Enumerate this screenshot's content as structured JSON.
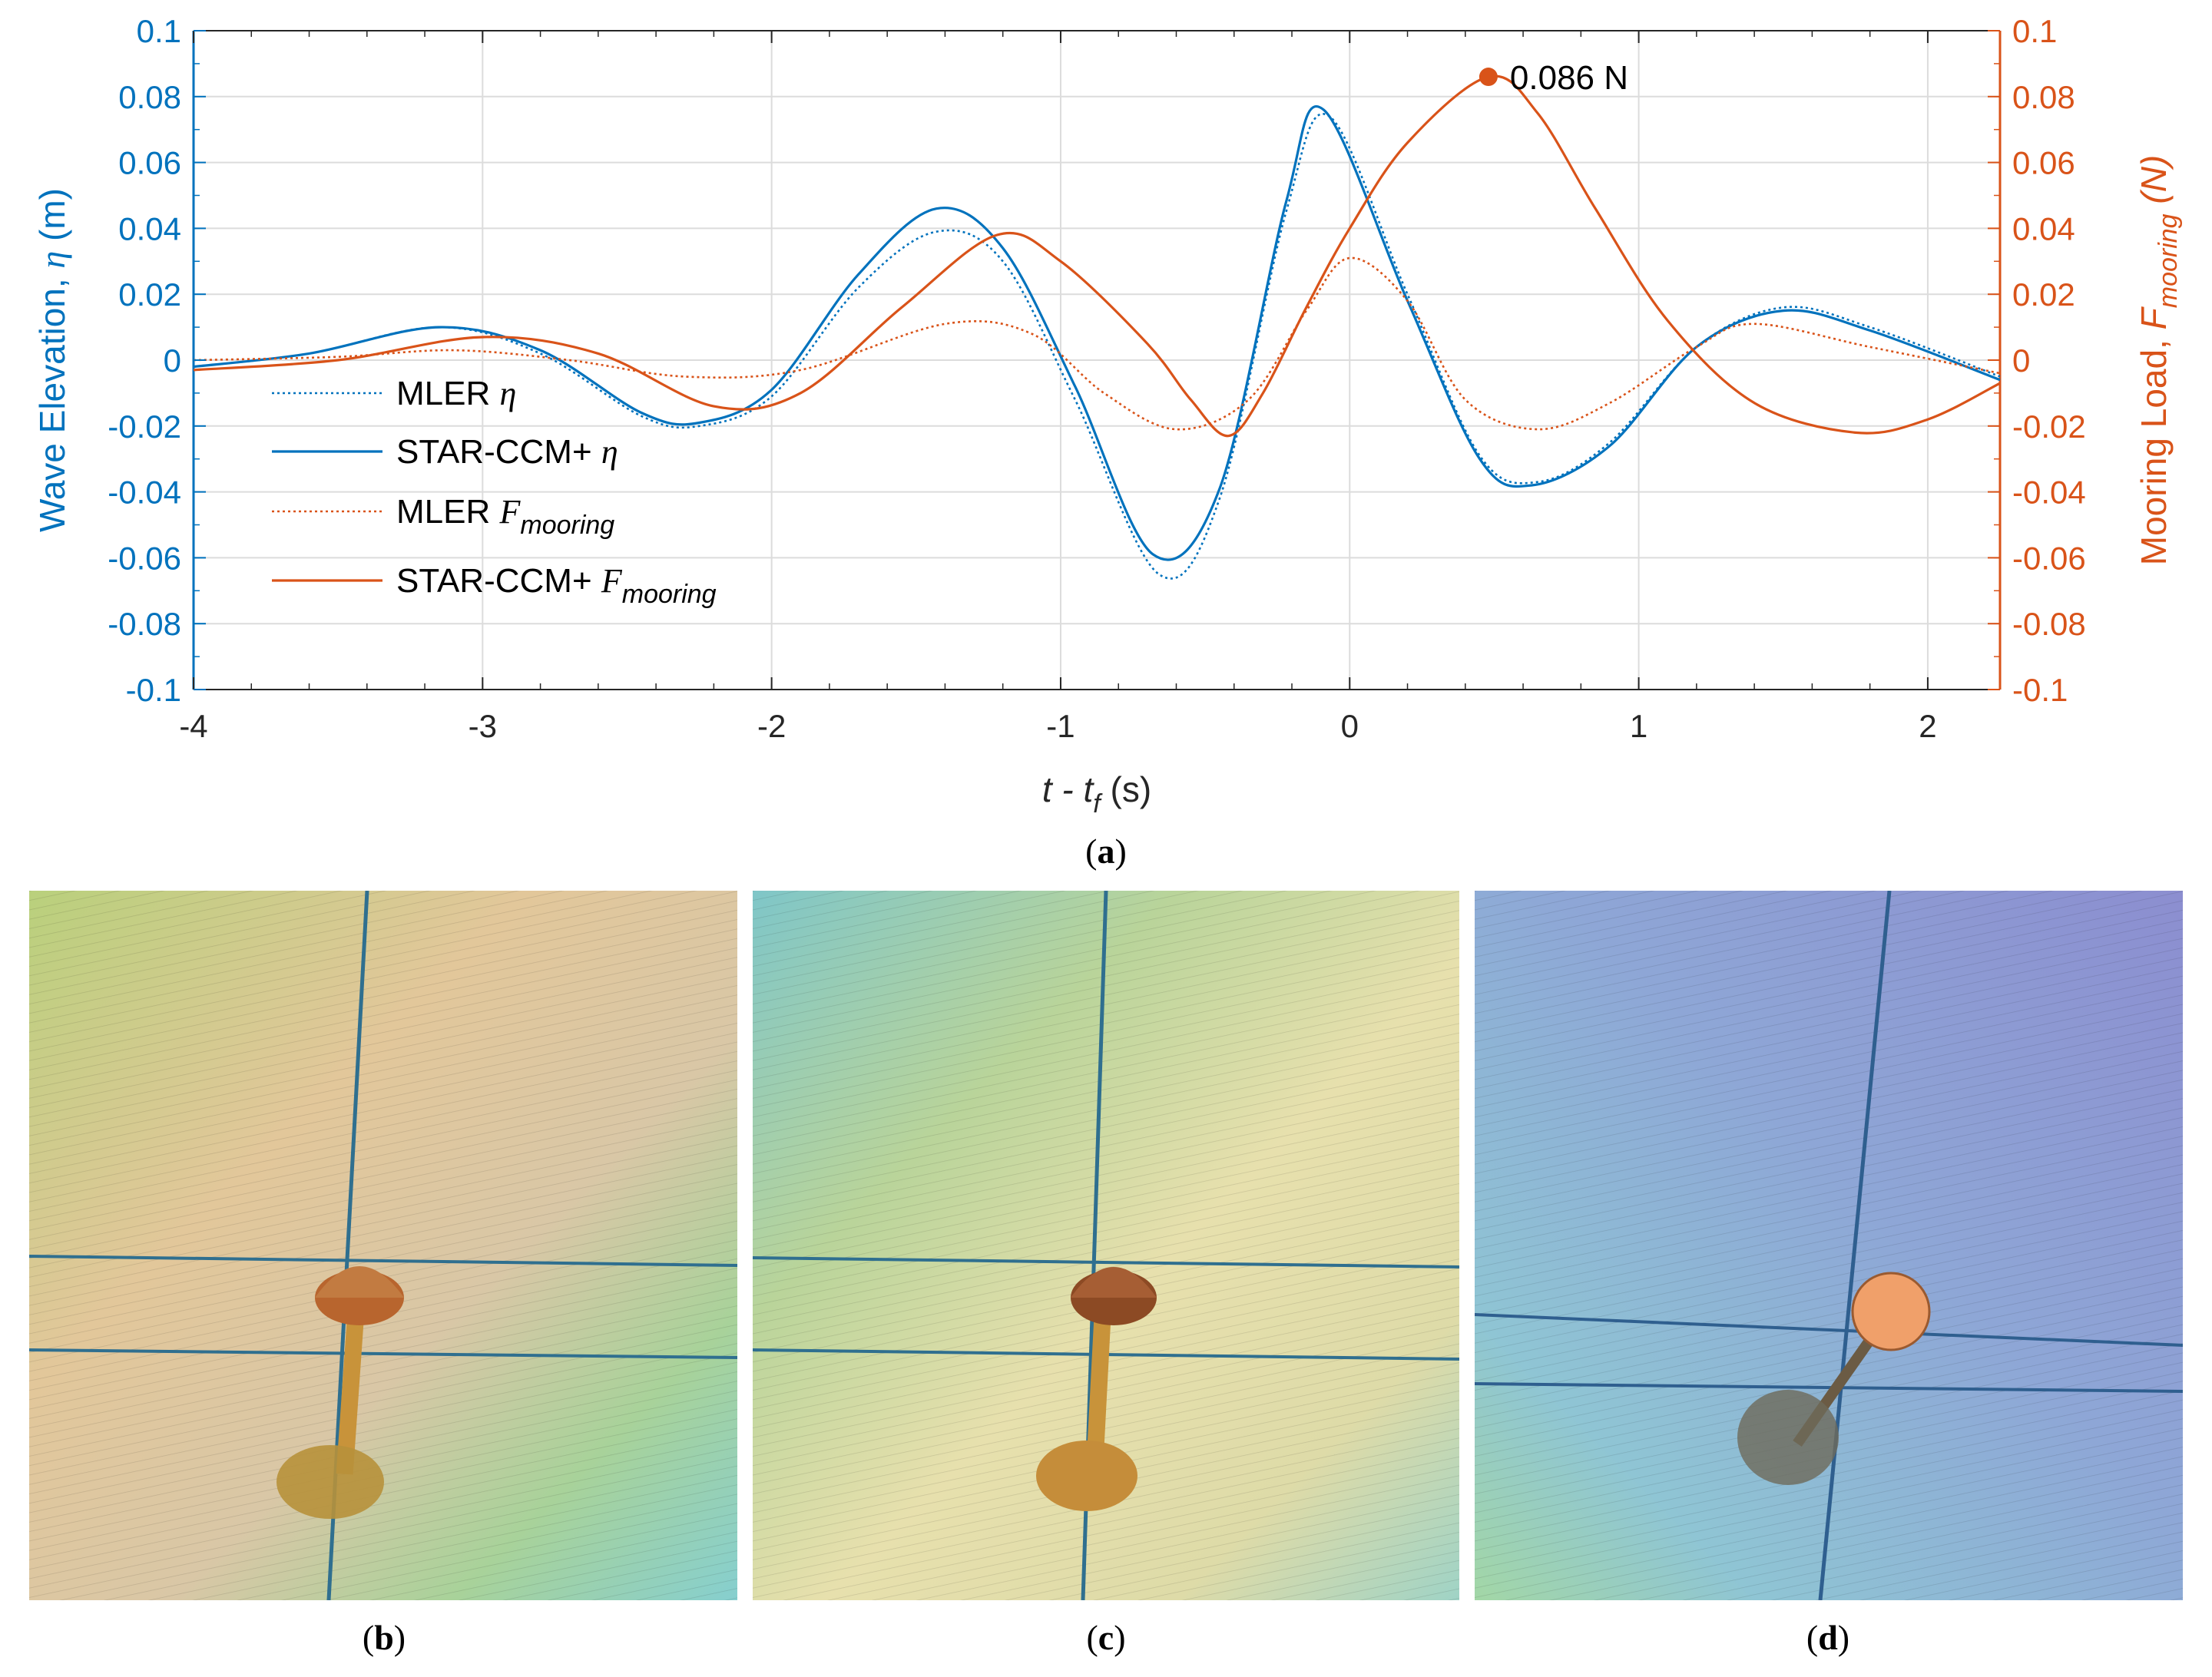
{
  "chart_data": {
    "type": "line",
    "xlabel_main": "t",
    "xlabel_mid": " - t",
    "xlabel_sub": "f",
    "xlabel_unit": " (s)",
    "ylabel_left_prefix": "Wave Elevation, ",
    "ylabel_left_symbol": "η",
    "ylabel_left_unit": " (m)",
    "ylabel_right_prefix": "Mooring Load, ",
    "ylabel_right_symbol": "F",
    "ylabel_right_sub": "mooring",
    "ylabel_right_unit": " (N)",
    "xlim": [
      -4,
      2.25
    ],
    "ylim_left": [
      -0.1,
      0.1
    ],
    "ylim_right": [
      -0.1,
      0.1
    ],
    "x_ticks": [
      "-4",
      "-3",
      "-2",
      "-1",
      "0",
      "1",
      "2"
    ],
    "y_ticks": [
      "-0.1",
      "-0.08",
      "-0.06",
      "-0.04",
      "-0.02",
      "0",
      "0.02",
      "0.04",
      "0.06",
      "0.08",
      "0.1"
    ],
    "grid": true,
    "legend_position": "lower-left",
    "colors": {
      "eta": "#0072BD",
      "force": "#D95319"
    },
    "series": [
      {
        "name_text": "MLER ",
        "name_sym": "η",
        "name_sub": "",
        "axis": "left",
        "style": "dotted",
        "x": [
          -4.0,
          -3.6,
          -3.15,
          -2.8,
          -2.45,
          -2.25,
          -2.0,
          -1.7,
          -1.43,
          -1.2,
          -0.95,
          -0.66,
          -0.45,
          -0.22,
          -0.07,
          0.2,
          0.45,
          0.65,
          0.9,
          1.2,
          1.5,
          1.8,
          2.25
        ],
        "y": [
          -0.002,
          0.002,
          0.01,
          0.002,
          -0.017,
          -0.02,
          -0.011,
          0.022,
          0.039,
          0.03,
          -0.012,
          -0.065,
          -0.042,
          0.045,
          0.074,
          0.02,
          -0.029,
          -0.037,
          -0.025,
          0.004,
          0.016,
          0.01,
          -0.005
        ]
      },
      {
        "name_text": "STAR-CCM+ ",
        "name_sym": "η",
        "name_sub": "",
        "axis": "left",
        "style": "solid",
        "x": [
          -4.0,
          -3.6,
          -3.15,
          -2.8,
          -2.45,
          -2.25,
          -2.0,
          -1.7,
          -1.43,
          -1.2,
          -0.95,
          -0.68,
          -0.45,
          -0.22,
          -0.09,
          0.2,
          0.45,
          0.63,
          0.9,
          1.2,
          1.5,
          1.8,
          2.25
        ],
        "y": [
          -0.002,
          0.002,
          0.01,
          0.003,
          -0.016,
          -0.019,
          -0.009,
          0.026,
          0.046,
          0.034,
          -0.008,
          -0.059,
          -0.039,
          0.048,
          0.076,
          0.018,
          -0.03,
          -0.038,
          -0.026,
          0.004,
          0.015,
          0.009,
          -0.006
        ]
      },
      {
        "name_text": "MLER ",
        "name_sym": "F",
        "name_sub": "mooring",
        "axis": "right",
        "style": "dotted",
        "x": [
          -4.0,
          -3.5,
          -3.1,
          -2.7,
          -2.3,
          -1.9,
          -1.4,
          -1.1,
          -0.85,
          -0.6,
          -0.35,
          -0.15,
          0.0,
          0.2,
          0.4,
          0.65,
          0.9,
          1.2,
          1.4,
          1.8,
          2.25
        ],
        "y": [
          0.0,
          0.001,
          0.003,
          0.0,
          -0.005,
          -0.003,
          0.011,
          0.008,
          -0.01,
          -0.021,
          -0.012,
          0.015,
          0.031,
          0.018,
          -0.012,
          -0.021,
          -0.013,
          0.004,
          0.011,
          0.004,
          -0.004
        ]
      },
      {
        "name_text": "STAR-CCM+ ",
        "name_sym": "F",
        "name_sub": "mooring",
        "axis": "right",
        "style": "solid",
        "x": [
          -4.0,
          -3.5,
          -3.0,
          -2.6,
          -2.2,
          -1.9,
          -1.55,
          -1.22,
          -1.0,
          -0.7,
          -0.55,
          -0.42,
          -0.3,
          -0.15,
          0.0,
          0.2,
          0.48,
          0.65,
          0.85,
          1.1,
          1.4,
          1.75,
          2.0,
          2.25
        ],
        "y": [
          -0.003,
          0.0,
          0.007,
          0.002,
          -0.014,
          -0.01,
          0.016,
          0.038,
          0.03,
          0.005,
          -0.012,
          -0.023,
          -0.01,
          0.016,
          0.04,
          0.066,
          0.086,
          0.075,
          0.046,
          0.012,
          -0.013,
          -0.022,
          -0.018,
          -0.007
        ]
      }
    ],
    "annotation": {
      "x": 0.48,
      "y": 0.086,
      "axis": "right",
      "text": "0.086 N"
    }
  },
  "captions": {
    "a": "a",
    "b": "b",
    "c": "c",
    "d": "d"
  },
  "icons": {
    "float_body": "buoy-float-icon",
    "heave_plate": "heave-plate-icon"
  }
}
